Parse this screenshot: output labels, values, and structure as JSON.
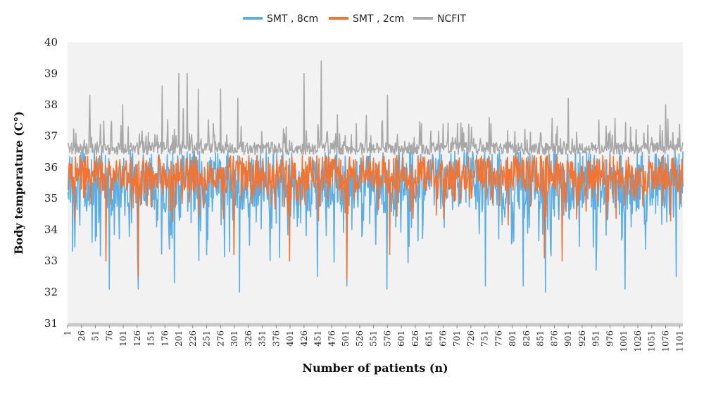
{
  "chart_data": {
    "type": "line",
    "xlabel": "Number of patients (n)",
    "ylabel": "Body temperature (C°)",
    "ylim": [
      31,
      40
    ],
    "yticks": [
      31,
      32,
      33,
      34,
      35,
      36,
      37,
      38,
      39,
      40
    ],
    "xlim": [
      1,
      1107
    ],
    "xticks": [
      1,
      26,
      51,
      76,
      101,
      126,
      151,
      176,
      201,
      226,
      251,
      276,
      301,
      326,
      351,
      376,
      401,
      426,
      451,
      476,
      501,
      526,
      551,
      576,
      601,
      626,
      651,
      676,
      701,
      726,
      751,
      776,
      801,
      826,
      851,
      876,
      901,
      926,
      951,
      976,
      1001,
      1026,
      1051,
      1076,
      1101
    ],
    "grid": false,
    "legend_position": "top",
    "plot_background": "#f2f2f2",
    "series": [
      {
        "name": "SMT , 8cm",
        "color": "#5aaee3",
        "n": 1107,
        "base": 35.4,
        "spread": 1.2,
        "dips": [
          [
            76,
            32.1
          ],
          [
            128,
            32.1
          ],
          [
            310,
            32.0
          ],
          [
            450,
            32.5
          ],
          [
            503,
            32.2
          ],
          [
            575,
            32.1
          ],
          [
            752,
            32.2
          ],
          [
            820,
            32.2
          ],
          [
            860,
            32.0
          ],
          [
            1003,
            32.1
          ],
          [
            1095,
            32.5
          ]
        ]
      },
      {
        "name": "SMT , 2cm",
        "color": "#f27332",
        "n": 1107,
        "base": 35.7,
        "spread": 0.7,
        "dips": [
          [
            70,
            33.0
          ],
          [
            128,
            32.5
          ],
          [
            300,
            33.2
          ],
          [
            400,
            33.0
          ],
          [
            503,
            32.4
          ],
          [
            580,
            33.2
          ],
          [
            858,
            33.1
          ],
          [
            890,
            33.0
          ]
        ]
      },
      {
        "name": "NCFIT",
        "color": "#a8a8a8",
        "n": 1107,
        "base": 36.6,
        "spread": 0.3,
        "peaks": [
          [
            41,
            38.3
          ],
          [
            100,
            38.0
          ],
          [
            171,
            38.6
          ],
          [
            201,
            39.0
          ],
          [
            216,
            39.0
          ],
          [
            236,
            38.5
          ],
          [
            276,
            38.5
          ],
          [
            307,
            38.2
          ],
          [
            426,
            39.0
          ],
          [
            457,
            39.4
          ],
          [
            576,
            38.3
          ],
          [
            901,
            38.2
          ],
          [
            1076,
            38.0
          ]
        ]
      }
    ]
  }
}
